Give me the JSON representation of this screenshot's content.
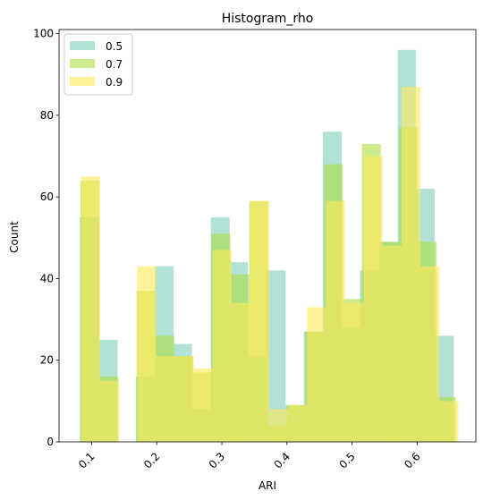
{
  "chart_data": {
    "type": "bar",
    "title": "Histogram_rho",
    "xlabel": "ARI",
    "ylabel": "Count",
    "xlim": [
      0.05,
      0.69
    ],
    "ylim": [
      0,
      101
    ],
    "xticks": [
      "0.1",
      "0.2",
      "0.3",
      "0.4",
      "0.5",
      "0.6"
    ],
    "yticks": [
      "0",
      "20",
      "40",
      "60",
      "80",
      "100"
    ],
    "grid": false,
    "legend_position": "top-left",
    "series": [
      {
        "name": "0.5",
        "color": "#7fcdbb",
        "bins": [
          {
            "x0": 0.082,
            "x1": 0.111,
            "count": 55
          },
          {
            "x0": 0.111,
            "x1": 0.14,
            "count": 25
          },
          {
            "x0": 0.168,
            "x1": 0.197,
            "count": 16
          },
          {
            "x0": 0.197,
            "x1": 0.226,
            "count": 43
          },
          {
            "x0": 0.226,
            "x1": 0.254,
            "count": 24
          },
          {
            "x0": 0.254,
            "x1": 0.283,
            "count": 8
          },
          {
            "x0": 0.283,
            "x1": 0.312,
            "count": 55
          },
          {
            "x0": 0.312,
            "x1": 0.34,
            "count": 44
          },
          {
            "x0": 0.34,
            "x1": 0.369,
            "count": 21
          },
          {
            "x0": 0.369,
            "x1": 0.398,
            "count": 42
          },
          {
            "x0": 0.398,
            "x1": 0.426,
            "count": 9
          },
          {
            "x0": 0.426,
            "x1": 0.455,
            "count": 27
          },
          {
            "x0": 0.455,
            "x1": 0.484,
            "count": 76
          },
          {
            "x0": 0.484,
            "x1": 0.512,
            "count": 28
          },
          {
            "x0": 0.512,
            "x1": 0.541,
            "count": 42
          },
          {
            "x0": 0.541,
            "x1": 0.57,
            "count": 49
          },
          {
            "x0": 0.57,
            "x1": 0.598,
            "count": 96
          },
          {
            "x0": 0.598,
            "x1": 0.627,
            "count": 62
          },
          {
            "x0": 0.627,
            "x1": 0.656,
            "count": 26
          }
        ]
      },
      {
        "name": "0.7",
        "color": "#addd41",
        "bins": [
          {
            "x0": 0.083,
            "x1": 0.112,
            "count": 64
          },
          {
            "x0": 0.112,
            "x1": 0.141,
            "count": 16
          },
          {
            "x0": 0.169,
            "x1": 0.198,
            "count": 37
          },
          {
            "x0": 0.198,
            "x1": 0.227,
            "count": 26
          },
          {
            "x0": 0.227,
            "x1": 0.256,
            "count": 21
          },
          {
            "x0": 0.256,
            "x1": 0.284,
            "count": 17
          },
          {
            "x0": 0.284,
            "x1": 0.313,
            "count": 51
          },
          {
            "x0": 0.313,
            "x1": 0.342,
            "count": 41
          },
          {
            "x0": 0.342,
            "x1": 0.371,
            "count": 59
          },
          {
            "x0": 0.371,
            "x1": 0.4,
            "count": 4
          },
          {
            "x0": 0.4,
            "x1": 0.428,
            "count": 9
          },
          {
            "x0": 0.428,
            "x1": 0.457,
            "count": 27
          },
          {
            "x0": 0.457,
            "x1": 0.486,
            "count": 68
          },
          {
            "x0": 0.486,
            "x1": 0.515,
            "count": 35
          },
          {
            "x0": 0.515,
            "x1": 0.544,
            "count": 73
          },
          {
            "x0": 0.544,
            "x1": 0.572,
            "count": 49
          },
          {
            "x0": 0.572,
            "x1": 0.601,
            "count": 77
          },
          {
            "x0": 0.601,
            "x1": 0.63,
            "count": 49
          },
          {
            "x0": 0.63,
            "x1": 0.659,
            "count": 11
          }
        ]
      },
      {
        "name": "0.9",
        "color": "#ffe957",
        "bins": [
          {
            "x0": 0.084,
            "x1": 0.113,
            "count": 65
          },
          {
            "x0": 0.113,
            "x1": 0.142,
            "count": 15
          },
          {
            "x0": 0.17,
            "x1": 0.199,
            "count": 43
          },
          {
            "x0": 0.199,
            "x1": 0.228,
            "count": 21
          },
          {
            "x0": 0.228,
            "x1": 0.257,
            "count": 21
          },
          {
            "x0": 0.257,
            "x1": 0.286,
            "count": 18
          },
          {
            "x0": 0.286,
            "x1": 0.315,
            "count": 47
          },
          {
            "x0": 0.315,
            "x1": 0.344,
            "count": 34
          },
          {
            "x0": 0.344,
            "x1": 0.373,
            "count": 59
          },
          {
            "x0": 0.373,
            "x1": 0.402,
            "count": 8
          },
          {
            "x0": 0.402,
            "x1": 0.431,
            "count": 9
          },
          {
            "x0": 0.431,
            "x1": 0.46,
            "count": 33
          },
          {
            "x0": 0.46,
            "x1": 0.489,
            "count": 59
          },
          {
            "x0": 0.489,
            "x1": 0.518,
            "count": 34
          },
          {
            "x0": 0.518,
            "x1": 0.547,
            "count": 70
          },
          {
            "x0": 0.547,
            "x1": 0.576,
            "count": 48
          },
          {
            "x0": 0.576,
            "x1": 0.605,
            "count": 87
          },
          {
            "x0": 0.605,
            "x1": 0.634,
            "count": 43
          },
          {
            "x0": 0.634,
            "x1": 0.663,
            "count": 10
          }
        ]
      }
    ]
  }
}
